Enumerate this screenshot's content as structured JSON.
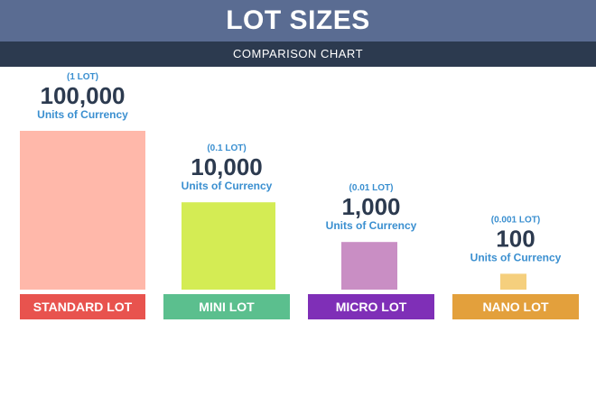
{
  "header": {
    "title": "LOT SIZES",
    "subtitle": "COMPARISON CHART"
  },
  "colors": {
    "header_bg": "#5a6c92",
    "subheader_bg": "#2c3a4f",
    "value_text": "#2c3a4f",
    "accent_text": "#3a8fd0"
  },
  "chart_data": {
    "type": "bar",
    "title": "LOT SIZES",
    "subtitle": "COMPARISON CHART",
    "categories": [
      "STANDARD LOT",
      "MINI LOT",
      "MICRO LOT",
      "NANO LOT"
    ],
    "values": [
      100000,
      10000,
      1000,
      100
    ],
    "value_labels": [
      "100,000",
      "10,000",
      "1,000",
      "100"
    ],
    "lot_labels": [
      "(1 LOT)",
      "(0.1 LOT)",
      "(0.01 LOT)",
      "(0.001 LOT)"
    ],
    "unit_label": "Units of Currency",
    "bar_colors": [
      "#ffb8aa",
      "#d4ec54",
      "#c98ec4",
      "#f5cf7d"
    ],
    "label_colors": [
      "#e8534e",
      "#5bbf8e",
      "#7f2fb7",
      "#e3a03c"
    ],
    "bar_level_fraction": [
      1.0,
      0.55,
      0.3,
      0.1
    ],
    "grid": false,
    "legend": "none"
  }
}
